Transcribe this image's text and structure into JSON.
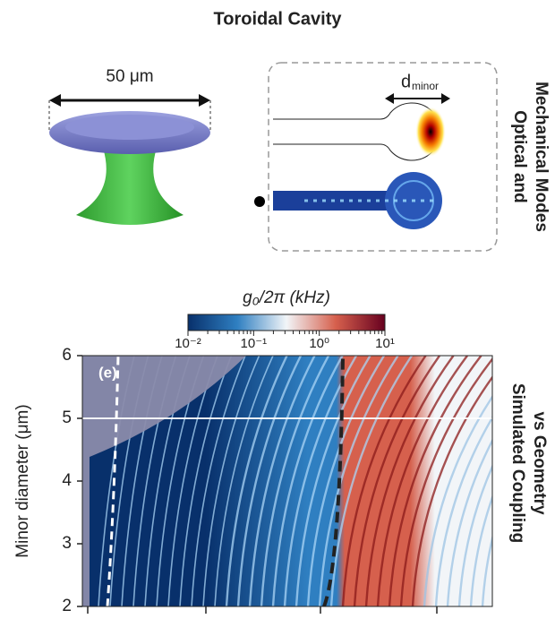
{
  "title": "Toroidal Cavity",
  "illustration": {
    "dimension_label": "50 μm",
    "d_label": "d",
    "d_subscript": "minor",
    "panel_label": [
      "Optical and",
      "Mechanical Modes"
    ]
  },
  "chart_data": {
    "type": "heatmap",
    "panel_label": "(e)",
    "side_label": [
      "Simulated Coupling",
      "vs Geometry"
    ],
    "ylabel": "Minor diameter (μm)",
    "ylim": [
      2,
      6
    ],
    "yticks": [
      2,
      3,
      4,
      5,
      6
    ],
    "reference_line": 5,
    "colorbar": {
      "label": "g₀/2π (kHz)",
      "scale": "log",
      "lim": [
        0.01,
        10
      ],
      "ticks": [
        {
          "value": 0.01,
          "label": "10⁻²"
        },
        {
          "value": 0.1,
          "label": "10⁻¹"
        },
        {
          "value": 1,
          "label": "10⁰"
        },
        {
          "value": 10,
          "label": "10¹"
        }
      ],
      "colors": [
        "#08306b",
        "#2f7fc1",
        "#f2f5f8",
        "#d6604d",
        "#67001f"
      ]
    }
  }
}
